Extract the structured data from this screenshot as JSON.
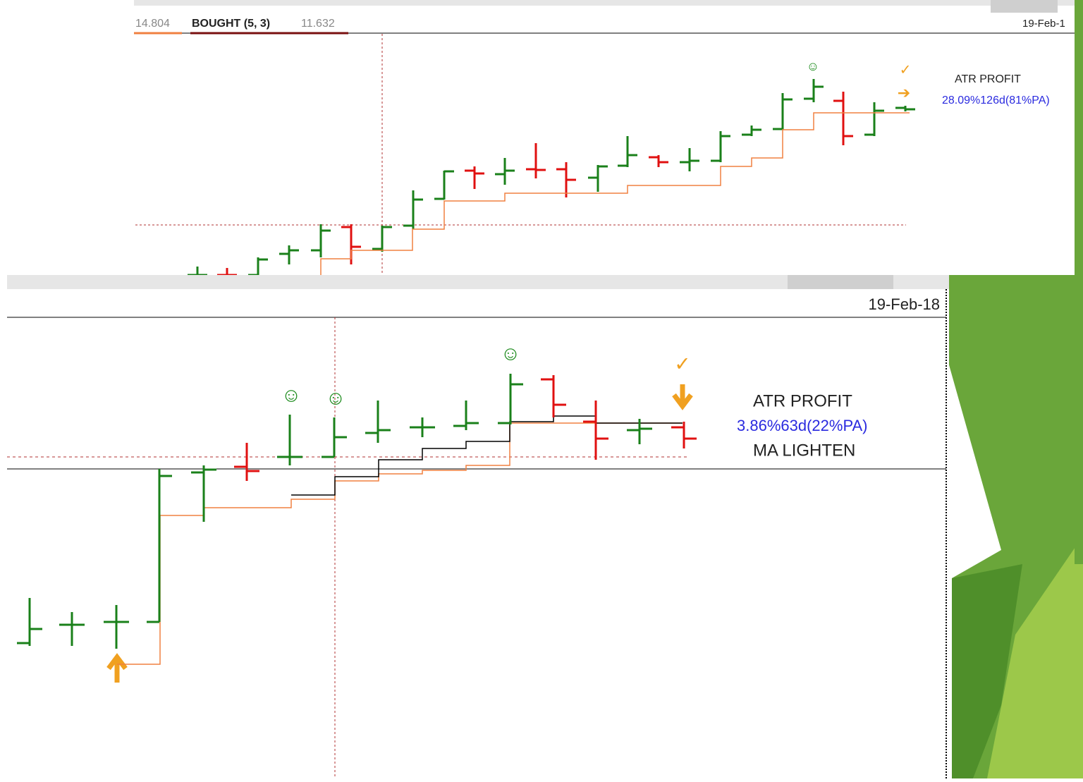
{
  "top_panel": {
    "legend": {
      "value_1": "14.804",
      "label": "BOUGHT (5, 3)",
      "value_2": "11.632"
    },
    "date": "19-Feb-1",
    "annotation": {
      "title": "ATR PROFIT",
      "result": "28.09%126d(81%PA)"
    }
  },
  "bottom_panel": {
    "date": "19-Feb-18",
    "annotation": {
      "title": "ATR PROFIT",
      "result": "3.86%63d(22%PA)",
      "note": "MA LIGHTEN"
    }
  }
}
